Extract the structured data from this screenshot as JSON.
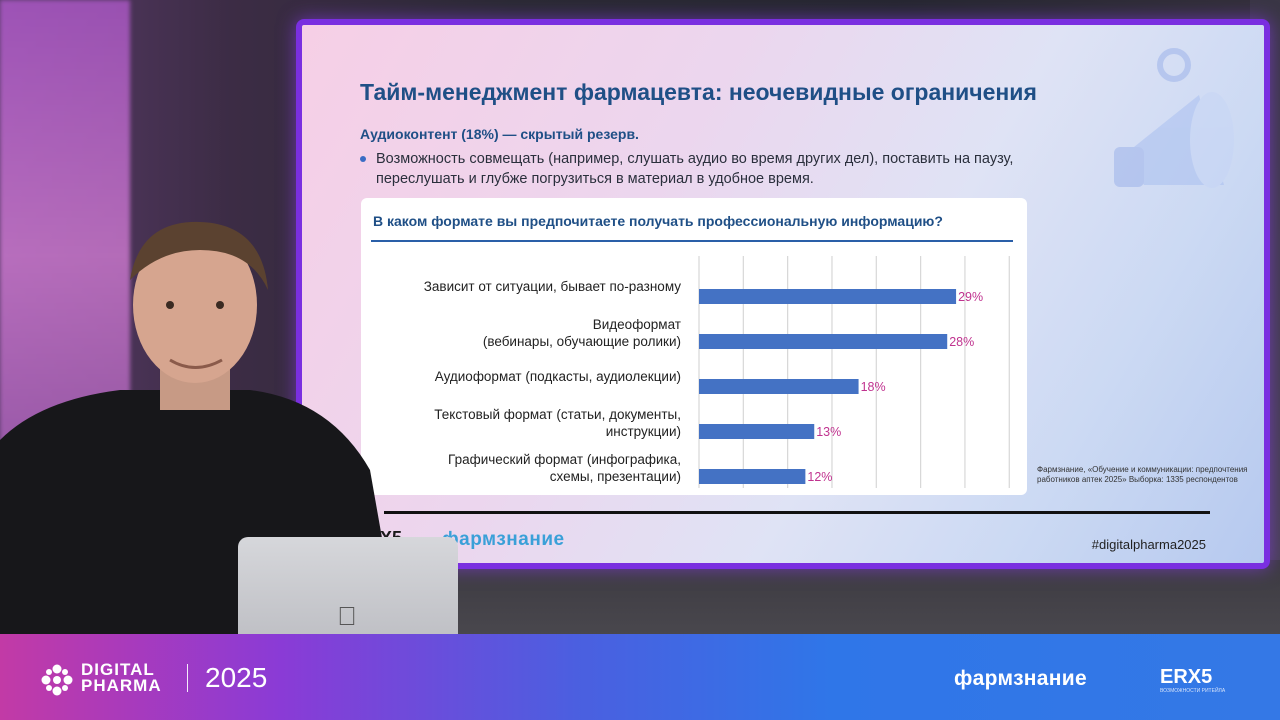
{
  "slide": {
    "title": "Тайм-менеджмент фармацевта: неочевидные ограничения",
    "subtitle": "Аудиоконтент (18%) — скрытый резерв.",
    "bullet": "Возможность совмещать (например, слушать аудио во время других дел), поставить на паузу, переслушать и глубже погрузиться в материал в удобное время.",
    "source_note": "Фармзнание, «Обучение и коммуникации: предпочтения работников аптек 2025» Выборка: 1335 респондентов",
    "logo_x5": "X5",
    "logo_farm": "фармзнание",
    "hashtag": "#digitalpharma2025"
  },
  "chart_data": {
    "type": "bar",
    "orientation": "horizontal",
    "title": "В каком формате вы предпочитаете получать профессиональную информацию?",
    "categories": [
      [
        "Зависит от ситуации, бывает по-разному"
      ],
      [
        "Видеоформат",
        "(вебинары, обучающие ролики)"
      ],
      [
        "Аудиоформат (подкасты, аудиолекции)"
      ],
      [
        "Текстовый формат (статьи, документы,",
        "инструкции)"
      ],
      [
        "Графический формат (инфографика,",
        "схемы, презентации)"
      ]
    ],
    "values": [
      29,
      28,
      18,
      13,
      12
    ],
    "value_labels": [
      "29%",
      "28%",
      "18%",
      "13%",
      "12%"
    ],
    "xlim": [
      0,
      37
    ],
    "grid": true,
    "bar_color": "#4472c4",
    "label_color": "#c0338f"
  },
  "bottom_bar": {
    "event_line1": "DIGITAL",
    "event_line2": "PHARMA",
    "year": "2025",
    "partner1": "фармзнание",
    "partner2": "ERX5",
    "partner2_sub": "ВОЗМОЖНОСТИ РИТЕЙЛА"
  }
}
